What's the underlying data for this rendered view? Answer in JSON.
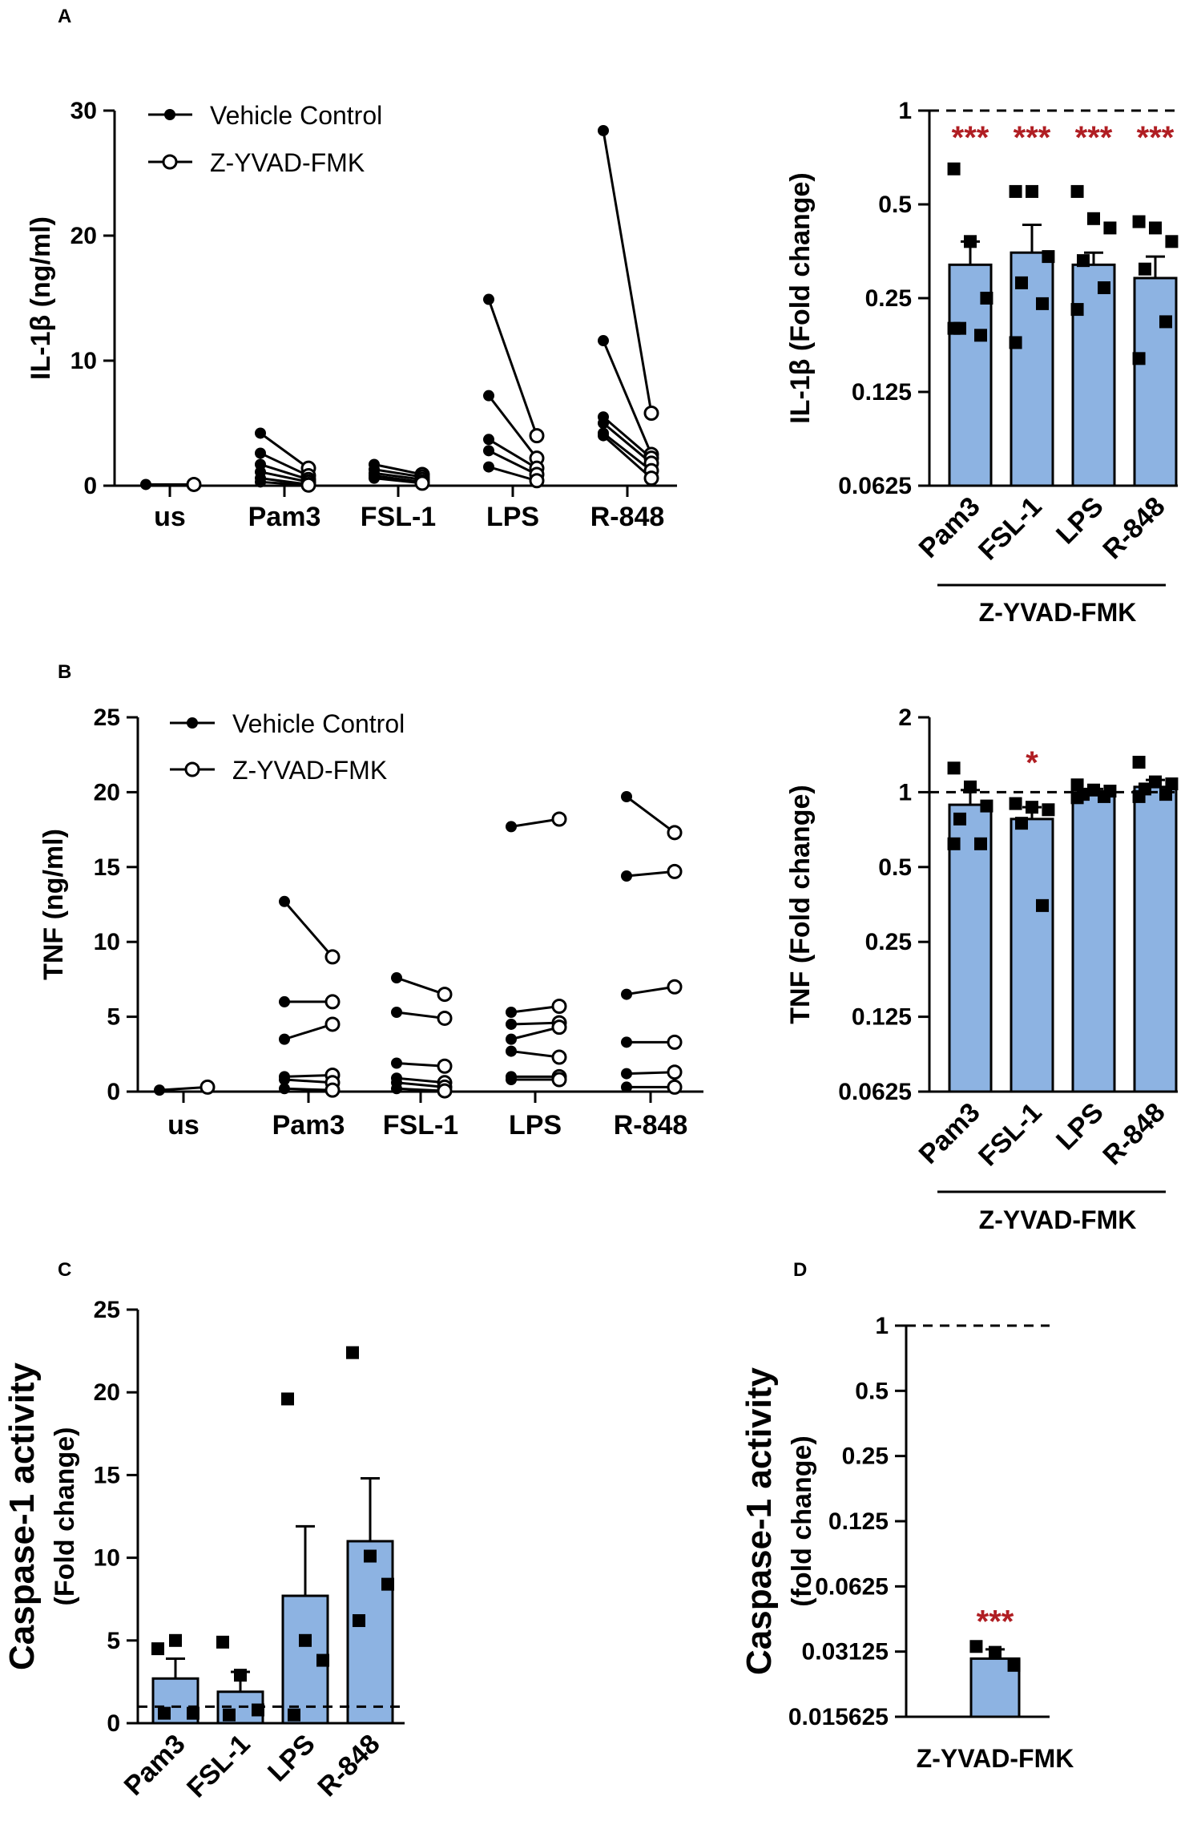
{
  "colors": {
    "bar_fill": "#8db3e2",
    "significance": "#b01e23",
    "ink": "#000000"
  },
  "panel_labels": {
    "a": "A",
    "b": "B",
    "c": "C",
    "d": "D"
  },
  "legend": {
    "vehicle": "Vehicle Control",
    "zyvad": "Z-YVAD-FMK"
  },
  "chart_data": [
    {
      "id": "A-left",
      "type": "line",
      "ylabel": "IL-1β (ng/ml)",
      "ylim": [
        0,
        30
      ],
      "yticks": [
        "0",
        "10",
        "20",
        "30"
      ],
      "categories": [
        "us",
        "Pam3",
        "FSL-1",
        "LPS",
        "R-848"
      ],
      "series": [
        {
          "category": "us",
          "pairs": [
            [
              0.1,
              0.1
            ]
          ]
        },
        {
          "category": "Pam3",
          "pairs": [
            [
              4.2,
              1.4
            ],
            [
              2.6,
              0.8
            ],
            [
              1.7,
              0.5
            ],
            [
              1.1,
              0.3
            ],
            [
              0.6,
              0.1
            ],
            [
              0.3,
              0.05
            ]
          ]
        },
        {
          "category": "FSL-1",
          "pairs": [
            [
              1.7,
              0.9
            ],
            [
              1.3,
              0.7
            ],
            [
              1.0,
              0.5
            ],
            [
              0.8,
              0.3
            ],
            [
              0.6,
              0.2
            ]
          ]
        },
        {
          "category": "LPS",
          "pairs": [
            [
              14.9,
              4.0
            ],
            [
              7.2,
              2.2
            ],
            [
              3.7,
              1.4
            ],
            [
              2.8,
              0.9
            ],
            [
              1.5,
              0.4
            ]
          ]
        },
        {
          "category": "R-848",
          "pairs": [
            [
              28.4,
              5.8
            ],
            [
              11.6,
              2.5
            ],
            [
              5.5,
              2.2
            ],
            [
              5.0,
              1.8
            ],
            [
              4.2,
              1.2
            ],
            [
              4.0,
              0.6
            ]
          ]
        }
      ]
    },
    {
      "id": "A-right",
      "type": "bar",
      "ylabel": "IL-1β (Fold change)",
      "scale": "log2",
      "ylim": [
        0.0625,
        1
      ],
      "yticks": [
        "0.0625",
        "0.125",
        "0.25",
        "0.5",
        "1"
      ],
      "reference_line": 1,
      "categories": [
        "Pam3",
        "FSL-1",
        "LPS",
        "R-848"
      ],
      "group_label": "Z-YVAD-FMK",
      "values": [
        0.32,
        0.35,
        0.32,
        0.29
      ],
      "errors": [
        0.38,
        0.43,
        0.35,
        0.34
      ],
      "points": [
        [
          0.65,
          0.38,
          0.25,
          0.2,
          0.19,
          0.2
        ],
        [
          0.55,
          0.55,
          0.34,
          0.28,
          0.24,
          0.18
        ],
        [
          0.55,
          0.45,
          0.42,
          0.33,
          0.27,
          0.23
        ],
        [
          0.44,
          0.42,
          0.38,
          0.31,
          0.21,
          0.16
        ]
      ],
      "significance": [
        "***",
        "***",
        "***",
        "***"
      ]
    },
    {
      "id": "B-left",
      "type": "line",
      "ylabel": "TNF (ng/ml)",
      "ylim": [
        0,
        25
      ],
      "yticks": [
        "0",
        "5",
        "10",
        "15",
        "20",
        "25"
      ],
      "categories": [
        "us",
        "Pam3",
        "FSL-1",
        "LPS",
        "R-848"
      ],
      "series": [
        {
          "category": "us",
          "pairs": [
            [
              0.1,
              0.3
            ]
          ]
        },
        {
          "category": "Pam3",
          "pairs": [
            [
              12.7,
              9.0
            ],
            [
              6.0,
              6.0
            ],
            [
              3.5,
              4.5
            ],
            [
              1.0,
              1.1
            ],
            [
              0.8,
              0.6
            ],
            [
              0.2,
              0.1
            ]
          ]
        },
        {
          "category": "FSL-1",
          "pairs": [
            [
              7.6,
              6.5
            ],
            [
              5.3,
              4.9
            ],
            [
              1.9,
              1.7
            ],
            [
              0.9,
              0.6
            ],
            [
              0.6,
              0.3
            ],
            [
              0.2,
              0.05
            ]
          ]
        },
        {
          "category": "LPS",
          "pairs": [
            [
              17.7,
              18.2
            ],
            [
              5.3,
              5.7
            ],
            [
              4.5,
              4.6
            ],
            [
              3.5,
              4.3
            ],
            [
              2.7,
              2.3
            ],
            [
              1.0,
              1.0
            ],
            [
              0.8,
              0.8
            ]
          ]
        },
        {
          "category": "R-848",
          "pairs": [
            [
              19.7,
              17.3
            ],
            [
              14.4,
              14.7
            ],
            [
              6.5,
              7.0
            ],
            [
              3.3,
              3.3
            ],
            [
              1.2,
              1.3
            ],
            [
              0.3,
              0.3
            ]
          ]
        }
      ]
    },
    {
      "id": "B-right",
      "type": "bar",
      "ylabel": "TNF (Fold change)",
      "scale": "log2",
      "ylim": [
        0.0625,
        2
      ],
      "yticks": [
        "0.0625",
        "0.125",
        "0.25",
        "0.5",
        "1",
        "2"
      ],
      "reference_line": 1,
      "categories": [
        "Pam3",
        "FSL-1",
        "LPS",
        "R-848"
      ],
      "group_label": "Z-YVAD-FMK",
      "values": [
        0.89,
        0.78,
        0.98,
        1.05
      ],
      "errors": [
        1.02,
        0.87,
        1.03,
        1.12
      ],
      "points": [
        [
          1.25,
          1.05,
          0.88,
          0.78,
          0.62,
          0.62
        ],
        [
          0.9,
          0.87,
          0.85,
          0.75,
          0.35
        ],
        [
          1.07,
          1.02,
          1.01,
          0.98,
          0.96,
          0.95
        ],
        [
          1.32,
          1.1,
          1.08,
          1.03,
          0.98,
          0.96
        ]
      ],
      "significance": [
        "",
        "*",
        "",
        ""
      ]
    },
    {
      "id": "C",
      "type": "bar",
      "ylabel_line1": "Caspase-1 activity",
      "ylabel_line2": "(Fold change)",
      "ylim": [
        0,
        25
      ],
      "yticks": [
        "0",
        "5",
        "10",
        "15",
        "20",
        "25"
      ],
      "reference_line": 1,
      "categories": [
        "Pam3",
        "FSL-1",
        "LPS",
        "R-848"
      ],
      "values": [
        2.7,
        1.9,
        7.7,
        11.0
      ],
      "errors": [
        3.9,
        3.1,
        11.9,
        14.8
      ],
      "points": [
        [
          4.5,
          5.0,
          0.6,
          0.6
        ],
        [
          4.9,
          2.9,
          0.8,
          0.5
        ],
        [
          19.6,
          5.0,
          3.8,
          0.5
        ],
        [
          22.4,
          10.1,
          8.4,
          6.2
        ]
      ]
    },
    {
      "id": "D",
      "type": "bar",
      "ylabel_line1": "Caspase-1 activity",
      "ylabel_line2": "(fold change)",
      "scale": "log2",
      "ylim": [
        0.015625,
        1
      ],
      "yticks": [
        "0.015625",
        "0.03125",
        "0.0625",
        "0.125",
        "0.25",
        "0.5",
        "1"
      ],
      "reference_line": 1,
      "categories": [
        "Z-YVAD-FMK"
      ],
      "values": [
        0.029
      ],
      "errors": [
        0.032
      ],
      "points": [
        [
          0.033,
          0.031,
          0.027
        ]
      ],
      "significance": [
        "***"
      ]
    }
  ]
}
